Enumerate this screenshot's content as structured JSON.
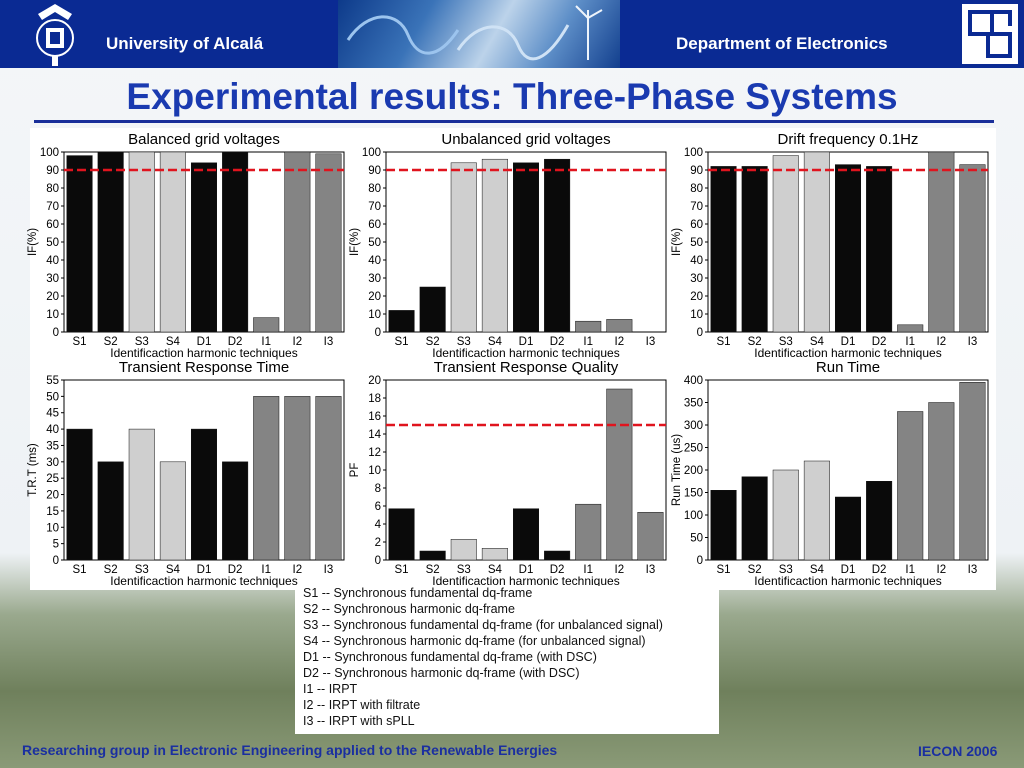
{
  "header": {
    "university": "University of Alcalá",
    "department": "Department of Electronics"
  },
  "slide_title": "Experimental results: Three-Phase Systems",
  "footer": {
    "left": "Researching group in Electronic Engineering applied to the Renewable Energies",
    "right": "IECON 2006"
  },
  "legend_items": [
    "S1 --  Synchronous fundamental dq-frame",
    "S2 --  Synchronous harmonic dq-frame",
    "S3 --  Synchronous fundamental dq-frame (for unbalanced signal)",
    "S4 --  Synchronous harmonic dq-frame (for unbalanced signal)",
    "D1 --  Synchronous fundamental dq-frame (with DSC)",
    "D2 --  Synchronous harmonic dq-frame (with DSC)",
    "I1  --  IRPT",
    "I2  --  IRPT with filtrate",
    "I3  --  IRPT with sPLL"
  ],
  "colors": {
    "black": "#0a0a0a",
    "light_gray": "#cfcfcf",
    "mid_gray": "#848484",
    "reference_line": "#e0141e",
    "header_blue": "#0a2a93"
  },
  "chart_data": [
    {
      "type": "bar",
      "title": "Balanced grid voltages",
      "xlabel": "Identificaction harmonic techniques",
      "ylabel": "IF(%)",
      "categories": [
        "S1",
        "S2",
        "S3",
        "S4",
        "D1",
        "D2",
        "I1",
        "I2",
        "I3"
      ],
      "values": [
        98,
        100,
        100,
        100,
        94,
        100,
        8,
        100,
        99
      ],
      "ylim": [
        0,
        100
      ],
      "yticks": [
        0,
        10,
        20,
        30,
        40,
        50,
        60,
        70,
        80,
        90,
        100
      ],
      "reference_line": 90,
      "bar_colors": [
        "black",
        "black",
        "light_gray",
        "light_gray",
        "black",
        "black",
        "mid_gray",
        "mid_gray",
        "mid_gray"
      ]
    },
    {
      "type": "bar",
      "title": "Unbalanced grid voltages",
      "xlabel": "Identificaction harmonic techniques",
      "ylabel": "IF(%)",
      "categories": [
        "S1",
        "S2",
        "S3",
        "S4",
        "D1",
        "D2",
        "I1",
        "I2",
        "I3"
      ],
      "values": [
        12,
        25,
        94,
        96,
        94,
        96,
        6,
        7,
        0
      ],
      "ylim": [
        0,
        100
      ],
      "yticks": [
        0,
        10,
        20,
        30,
        40,
        50,
        60,
        70,
        80,
        90,
        100
      ],
      "reference_line": 90,
      "bar_colors": [
        "black",
        "black",
        "light_gray",
        "light_gray",
        "black",
        "black",
        "mid_gray",
        "mid_gray",
        "mid_gray"
      ]
    },
    {
      "type": "bar",
      "title": "Drift frequency 0.1Hz",
      "xlabel": "Identificaction harmonic techniques",
      "ylabel": "IF(%)",
      "categories": [
        "S1",
        "S2",
        "S3",
        "S4",
        "D1",
        "D2",
        "I1",
        "I2",
        "I3"
      ],
      "values": [
        92,
        92,
        98,
        100,
        93,
        92,
        4,
        100,
        93
      ],
      "ylim": [
        0,
        100
      ],
      "yticks": [
        0,
        10,
        20,
        30,
        40,
        50,
        60,
        70,
        80,
        90,
        100
      ],
      "reference_line": 90,
      "bar_colors": [
        "black",
        "black",
        "light_gray",
        "light_gray",
        "black",
        "black",
        "mid_gray",
        "mid_gray",
        "mid_gray"
      ]
    },
    {
      "type": "bar",
      "title": "Transient Response Time",
      "xlabel": "Identificaction harmonic techniques",
      "ylabel": "T.R.T (ms)",
      "categories": [
        "S1",
        "S2",
        "S3",
        "S4",
        "D1",
        "D2",
        "I1",
        "I2",
        "I3"
      ],
      "values": [
        40,
        30,
        40,
        30,
        40,
        30,
        50,
        50,
        50
      ],
      "ylim": [
        0,
        55
      ],
      "yticks": [
        0,
        5,
        10,
        15,
        20,
        25,
        30,
        35,
        40,
        45,
        50,
        55
      ],
      "bar_colors": [
        "black",
        "black",
        "light_gray",
        "light_gray",
        "black",
        "black",
        "mid_gray",
        "mid_gray",
        "mid_gray"
      ]
    },
    {
      "type": "bar",
      "title": "Transient Response Quality",
      "xlabel": "Identificaction harmonic techniques",
      "ylabel": "PF",
      "categories": [
        "S1",
        "S2",
        "S3",
        "S4",
        "D1",
        "D2",
        "I1",
        "I2",
        "I3"
      ],
      "values": [
        5.7,
        1.0,
        2.3,
        1.3,
        5.7,
        1.0,
        6.2,
        19,
        5.3
      ],
      "ylim": [
        0,
        20
      ],
      "yticks": [
        0,
        2,
        4,
        6,
        8,
        10,
        12,
        14,
        16,
        18,
        20
      ],
      "reference_line": 15,
      "bar_colors": [
        "black",
        "black",
        "light_gray",
        "light_gray",
        "black",
        "black",
        "mid_gray",
        "mid_gray",
        "mid_gray"
      ]
    },
    {
      "type": "bar",
      "title": "Run Time",
      "xlabel": "Identificaction harmonic techniques",
      "ylabel": "Run Time (us)",
      "categories": [
        "S1",
        "S2",
        "S3",
        "S4",
        "D1",
        "D2",
        "I1",
        "I2",
        "I3"
      ],
      "values": [
        155,
        185,
        200,
        220,
        140,
        175,
        330,
        350,
        395
      ],
      "ylim": [
        0,
        400
      ],
      "yticks": [
        0,
        50,
        100,
        150,
        200,
        250,
        300,
        350,
        400
      ],
      "bar_colors": [
        "black",
        "black",
        "light_gray",
        "light_gray",
        "black",
        "black",
        "mid_gray",
        "mid_gray",
        "mid_gray"
      ]
    }
  ]
}
